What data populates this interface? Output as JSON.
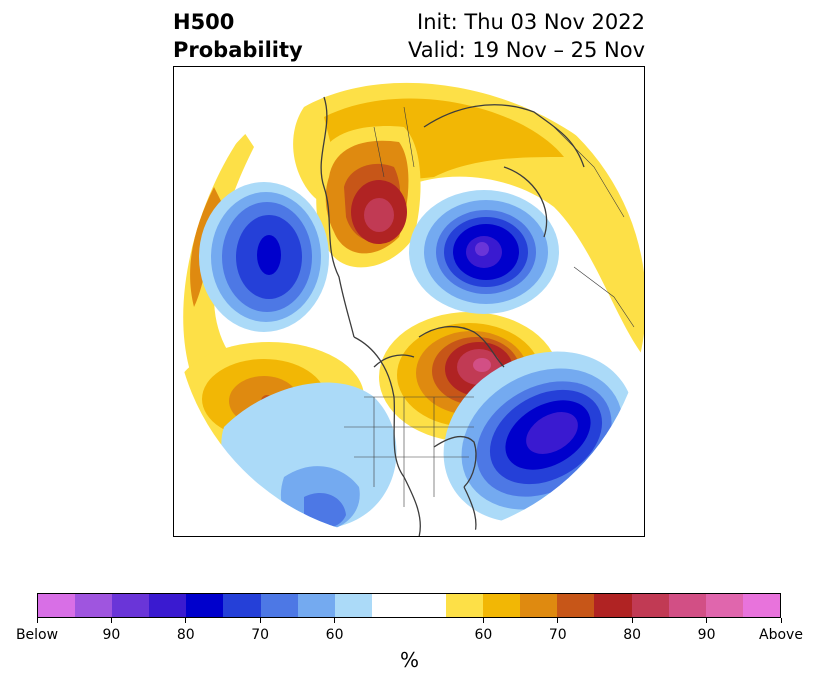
{
  "title": {
    "left_line1": "H500",
    "left_line2": "Probability",
    "right_line1": "Init: Thu 03 Nov 2022",
    "right_line2": "Valid: 19 Nov – 25 Nov"
  },
  "colorbar": {
    "colors": [
      "#d86fe6",
      "#9f55df",
      "#6a35d8",
      "#3a1ad0",
      "#0000cc",
      "#2540d8",
      "#4d78e5",
      "#74aaf0",
      "#abdaf8",
      "#ffffff",
      "#ffffff",
      "#fde047",
      "#f2b705",
      "#df8a10",
      "#c75618",
      "#b02323",
      "#c13a54",
      "#d24f85",
      "#e066ad",
      "#e873dc"
    ],
    "ticks": [
      {
        "label": "Below",
        "frac": 0.0
      },
      {
        "label": "90",
        "frac": 0.1
      },
      {
        "label": "80",
        "frac": 0.2
      },
      {
        "label": "70",
        "frac": 0.3
      },
      {
        "label": "60",
        "frac": 0.4
      },
      {
        "label": "60",
        "frac": 0.6
      },
      {
        "label": "70",
        "frac": 0.7
      },
      {
        "label": "80",
        "frac": 0.8
      },
      {
        "label": "90",
        "frac": 0.9
      },
      {
        "label": "Above",
        "frac": 1.0
      }
    ],
    "unit": "%"
  }
}
